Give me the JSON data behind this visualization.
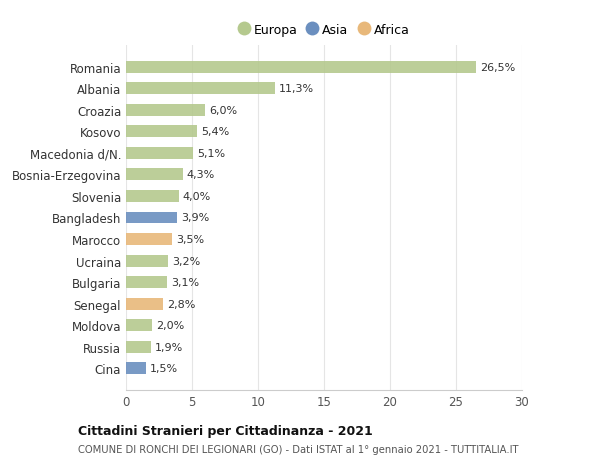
{
  "categories": [
    "Cina",
    "Russia",
    "Moldova",
    "Senegal",
    "Bulgaria",
    "Ucraina",
    "Marocco",
    "Bangladesh",
    "Slovenia",
    "Bosnia-Erzegovina",
    "Macedonia d/N.",
    "Kosovo",
    "Croazia",
    "Albania",
    "Romania"
  ],
  "values": [
    1.5,
    1.9,
    2.0,
    2.8,
    3.1,
    3.2,
    3.5,
    3.9,
    4.0,
    4.3,
    5.1,
    5.4,
    6.0,
    11.3,
    26.5
  ],
  "labels": [
    "1,5%",
    "1,9%",
    "2,0%",
    "2,8%",
    "3,1%",
    "3,2%",
    "3,5%",
    "3,9%",
    "4,0%",
    "4,3%",
    "5,1%",
    "5,4%",
    "6,0%",
    "11,3%",
    "26,5%"
  ],
  "continents": [
    "Asia",
    "Europa",
    "Europa",
    "Africa",
    "Europa",
    "Europa",
    "Africa",
    "Asia",
    "Europa",
    "Europa",
    "Europa",
    "Europa",
    "Europa",
    "Europa",
    "Europa"
  ],
  "colors": {
    "Europa": "#b5c98e",
    "Asia": "#6b8fbf",
    "Africa": "#e8b87a"
  },
  "legend_order": [
    "Europa",
    "Asia",
    "Africa"
  ],
  "legend_colors": [
    "#b5c98e",
    "#6b8fbf",
    "#e8b87a"
  ],
  "xlim": [
    0,
    30
  ],
  "xticks": [
    0,
    5,
    10,
    15,
    20,
    25,
    30
  ],
  "title1": "Cittadini Stranieri per Cittadinanza - 2021",
  "title2": "COMUNE DI RONCHI DEI LEGIONARI (GO) - Dati ISTAT al 1° gennaio 2021 - TUTTITALIA.IT",
  "background_color": "#ffffff",
  "bar_height": 0.55,
  "grid_color": "#e5e5e5",
  "label_fontsize": 8.0,
  "ytick_fontsize": 8.5,
  "xtick_fontsize": 8.5
}
